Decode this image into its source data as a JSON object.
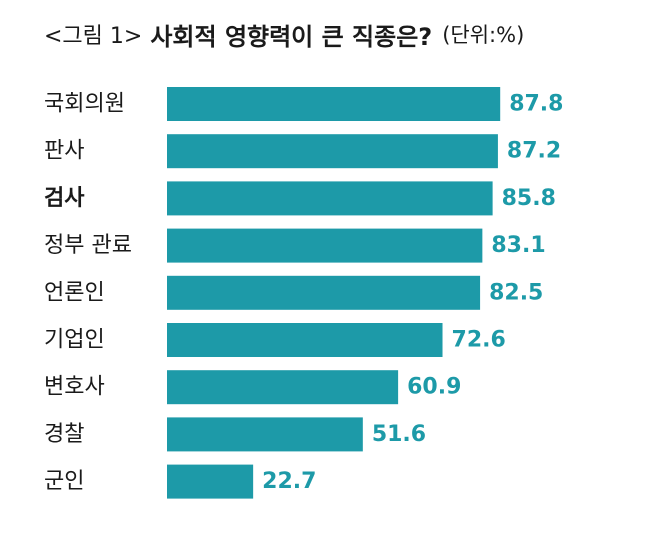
{
  "title": {
    "prefix": "<그림 1>",
    "main": "사회적 영향력이 큰 직종은?",
    "unit": "(단위:%)"
  },
  "colors": {
    "bar": "#1d9aa8",
    "value_label": "#1d9aa8",
    "category_label": "#1a1a1a"
  },
  "chart_data": {
    "type": "bar",
    "orientation": "horizontal",
    "categories": [
      "국회의원",
      "판사",
      "검사",
      "정부 관료",
      "언론인",
      "기업인",
      "변호사",
      "경찰",
      "군인"
    ],
    "values": [
      87.8,
      87.2,
      85.8,
      83.1,
      82.5,
      72.6,
      60.9,
      51.6,
      22.7
    ],
    "highlighted_category": "검사",
    "xlim": [
      0,
      100
    ],
    "grid": false,
    "legend": "none"
  }
}
